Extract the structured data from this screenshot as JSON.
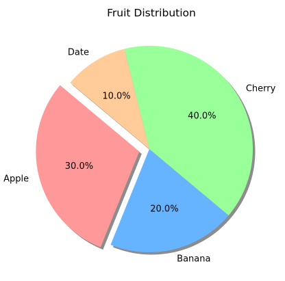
{
  "chart_data": {
    "type": "pie",
    "title": "Fruit Distribution",
    "categories": [
      "Apple",
      "Banana",
      "Cherry",
      "Date"
    ],
    "values": [
      30,
      20,
      40,
      10
    ],
    "percent_labels": [
      "30.0%",
      "20.0%",
      "40.0%",
      "10.0%"
    ],
    "colors": [
      "#ff9999",
      "#66b3ff",
      "#99ff99",
      "#ffcc99"
    ],
    "exploded": [
      "Apple"
    ],
    "shadow": true,
    "start_angle_degrees": 140,
    "direction": "counterclockwise",
    "legend": "none"
  }
}
